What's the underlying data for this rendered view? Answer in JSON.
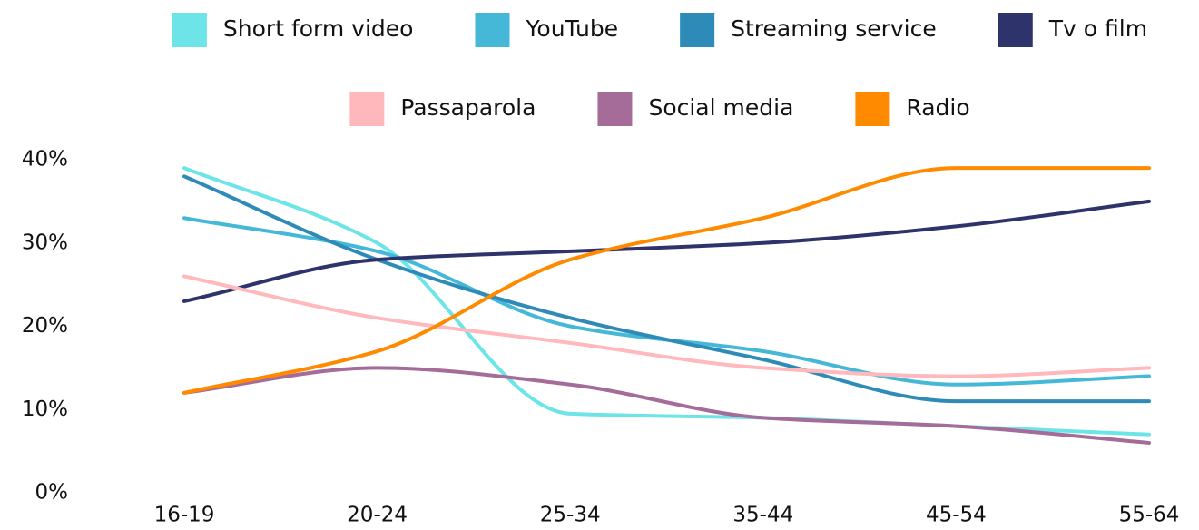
{
  "chart_data": {
    "type": "line",
    "categories": [
      "16-19",
      "20-24",
      "25-34",
      "35-44",
      "45-54",
      "55-64"
    ],
    "series": [
      {
        "name": "Short form video",
        "color": "#6de5e8",
        "values": [
          39,
          30,
          9.5,
          9,
          8,
          7
        ]
      },
      {
        "name": "YouTube",
        "color": "#45b8d8",
        "values": [
          33,
          29,
          20,
          17,
          13,
          14
        ]
      },
      {
        "name": "Streaming service",
        "color": "#2e8bb8",
        "values": [
          38,
          28,
          21,
          16,
          11,
          11
        ]
      },
      {
        "name": "Tv o film",
        "color": "#2f336b",
        "values": [
          23,
          28,
          29,
          30,
          32,
          35
        ]
      },
      {
        "name": "Passaparola",
        "color": "#ffb8bc",
        "values": [
          26,
          21,
          18,
          15,
          14,
          15
        ]
      },
      {
        "name": "Social media",
        "color": "#a56c9a",
        "values": [
          12,
          15,
          13,
          9,
          8,
          6
        ]
      },
      {
        "name": "Radio",
        "color": "#ff8a00",
        "values": [
          12,
          17,
          28,
          33,
          39,
          39
        ]
      }
    ],
    "ylim": [
      0,
      40
    ],
    "yticks": [
      {
        "value": 0,
        "label": "0%"
      },
      {
        "value": 10,
        "label": "10%"
      },
      {
        "value": 20,
        "label": "20%"
      },
      {
        "value": 30,
        "label": "30%"
      },
      {
        "value": 40,
        "label": "40%"
      }
    ],
    "grid": false,
    "legend": "top"
  }
}
